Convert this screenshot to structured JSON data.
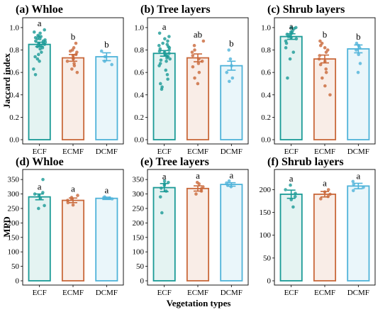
{
  "figure": {
    "xlabel": "Vegetation types",
    "row_ylabels": [
      "Jaccard index",
      "MPD"
    ]
  },
  "colors": {
    "ECF": "#1a9a96",
    "ECMF": "#c9683a",
    "DCMF": "#4fb3d9"
  },
  "chart_data": [
    {
      "type": "bar",
      "title": "(a) Whloe",
      "categories": [
        "ECF",
        "ECMF",
        "DCMF"
      ],
      "values": [
        0.85,
        0.73,
        0.74
      ],
      "errors": [
        0.02,
        0.03,
        0.035
      ],
      "letters": [
        "a",
        "b",
        "b"
      ],
      "ylim": [
        0,
        1.05
      ],
      "yticks": [
        "0.0",
        "0.2",
        "0.4",
        "0.6",
        "0.8",
        "1.0"
      ],
      "ylabel": "Jaccard index",
      "points": [
        [
          0.98,
          0.96,
          0.95,
          0.93,
          0.92,
          0.92,
          0.91,
          0.9,
          0.9,
          0.89,
          0.88,
          0.88,
          0.87,
          0.86,
          0.86,
          0.85,
          0.85,
          0.84,
          0.83,
          0.82,
          0.81,
          0.78,
          0.76,
          0.74,
          0.72,
          0.7,
          0.63,
          0.58
        ],
        [
          0.86,
          0.82,
          0.8,
          0.79,
          0.78,
          0.76,
          0.75,
          0.73,
          0.72,
          0.7,
          0.68,
          0.66,
          0.63,
          0.6
        ],
        [
          0.79,
          0.74,
          0.7,
          0.67
        ]
      ]
    },
    {
      "type": "bar",
      "title": "(b) Tree layers",
      "categories": [
        "ECF",
        "ECMF",
        "DCMF"
      ],
      "values": [
        0.77,
        0.73,
        0.66
      ],
      "errors": [
        0.025,
        0.035,
        0.04
      ],
      "letters": [
        "a",
        "ab",
        "b"
      ],
      "ylim": [
        0,
        1.05
      ],
      "yticks": [
        "0.0",
        "0.2",
        "0.4",
        "0.6",
        "0.8",
        "1.0"
      ],
      "ylabel": "",
      "points": [
        [
          0.95,
          0.92,
          0.9,
          0.88,
          0.86,
          0.85,
          0.84,
          0.83,
          0.82,
          0.81,
          0.8,
          0.79,
          0.78,
          0.77,
          0.76,
          0.75,
          0.74,
          0.73,
          0.72,
          0.71,
          0.7,
          0.68,
          0.66,
          0.62,
          0.58,
          0.54,
          0.5,
          0.47,
          0.45
        ],
        [
          0.88,
          0.84,
          0.8,
          0.78,
          0.75,
          0.72,
          0.7,
          0.68,
          0.65,
          0.6,
          0.55,
          0.5
        ],
        [
          0.8,
          0.72,
          0.66,
          0.6,
          0.55,
          0.52
        ]
      ]
    },
    {
      "type": "bar",
      "title": "(c) Shrub layers",
      "categories": [
        "ECF",
        "ECMF",
        "DCMF"
      ],
      "values": [
        0.92,
        0.72,
        0.81
      ],
      "errors": [
        0.025,
        0.035,
        0.035
      ],
      "letters": [
        "a",
        "b",
        "b"
      ],
      "ylim": [
        0,
        1.05
      ],
      "yticks": [
        "0.0",
        "0.2",
        "0.4",
        "0.6",
        "0.8",
        "1.0"
      ],
      "ylabel": "",
      "points": [
        [
          1.0,
          1.0,
          0.99,
          0.97,
          0.96,
          0.95,
          0.94,
          0.93,
          0.92,
          0.91,
          0.9,
          0.88,
          0.86,
          0.82,
          0.78,
          0.72,
          0.55
        ],
        [
          0.88,
          0.86,
          0.84,
          0.82,
          0.8,
          0.78,
          0.75,
          0.72,
          0.7,
          0.67,
          0.63,
          0.6,
          0.55,
          0.48,
          0.4
        ],
        [
          0.86,
          0.84,
          0.82,
          0.8,
          0.76,
          0.68,
          0.6
        ]
      ]
    },
    {
      "type": "bar",
      "title": "(d) Whloe",
      "categories": [
        "ECF",
        "ECMF",
        "DCMF"
      ],
      "values": [
        290,
        278,
        285
      ],
      "errors": [
        10,
        8,
        4
      ],
      "letters": [
        "a",
        "a",
        "a"
      ],
      "ylim": [
        0,
        370
      ],
      "yticks": [
        "0",
        "50",
        "100",
        "150",
        "200",
        "250",
        "300",
        "350"
      ],
      "ylabel": "MPD",
      "points": [
        [
          350,
          305,
          300,
          295,
          285,
          260,
          250
        ],
        [
          295,
          288,
          282,
          278,
          270,
          262
        ],
        [
          290,
          286,
          283
        ]
      ]
    },
    {
      "type": "bar",
      "title": "(e) Tree layers",
      "categories": [
        "ECF",
        "ECMF",
        "DCMF"
      ],
      "values": [
        322,
        319,
        333
      ],
      "errors": [
        14,
        9,
        6
      ],
      "letters": [
        "a",
        "a",
        "a"
      ],
      "ylim": [
        0,
        370
      ],
      "yticks": [
        "0",
        "50",
        "100",
        "150",
        "200",
        "250",
        "300",
        "350"
      ],
      "ylabel": "",
      "points": [
        [
          345,
          340,
          335,
          330,
          320,
          310,
          290,
          235
        ],
        [
          340,
          335,
          325,
          318,
          310,
          300
        ],
        [
          345,
          338,
          330,
          325
        ]
      ]
    },
    {
      "type": "bar",
      "title": "(f) Shrub layers",
      "categories": [
        "ECF",
        "ECMF",
        "DCMF"
      ],
      "values": [
        190,
        190,
        208
      ],
      "errors": [
        9,
        6,
        6
      ],
      "letters": [
        "a",
        "a",
        "a"
      ],
      "ylim": [
        0,
        235
      ],
      "yticks": [
        "0",
        "50",
        "100",
        "150",
        "200"
      ],
      "ylabel": "",
      "points": [
        [
          210,
          200,
          192,
          185,
          178,
          162
        ],
        [
          200,
          195,
          190,
          185,
          180
        ],
        [
          218,
          212,
          205,
          198
        ]
      ]
    }
  ]
}
